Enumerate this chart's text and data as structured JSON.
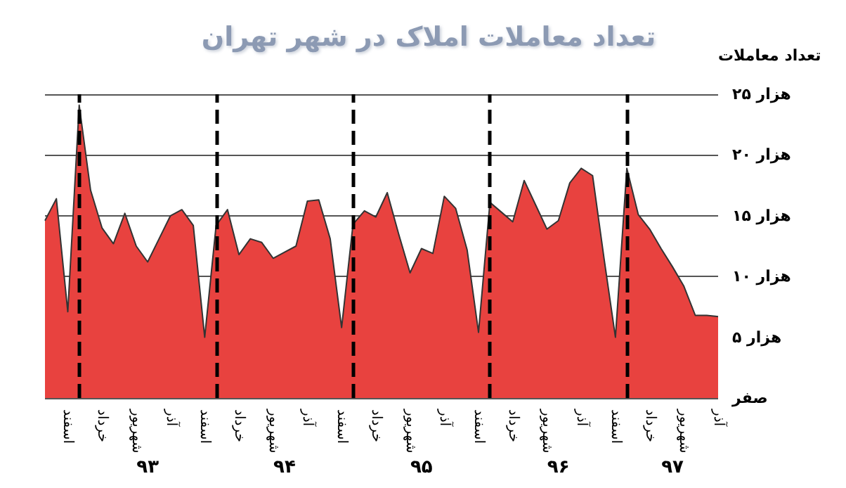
{
  "chart_data": {
    "type": "area",
    "title": "تعداد معاملات املاک در شهر تهران",
    "ylabel": "تعداد معاملات",
    "categories": [
      null,
      null,
      "اسفند",
      null,
      null,
      "خرداد",
      null,
      null,
      "شهریور",
      null,
      null,
      "آذر",
      null,
      null,
      "اسفند",
      null,
      null,
      "خرداد",
      null,
      null,
      "شهریور",
      null,
      null,
      "آذر",
      null,
      null,
      "اسفند",
      null,
      null,
      "خرداد",
      null,
      null,
      "شهریور",
      null,
      null,
      "آذر",
      null,
      null,
      "اسفند",
      null,
      null,
      "خرداد",
      null,
      null,
      "شهریور",
      null,
      null,
      "آذر",
      null,
      null,
      "اسفند",
      null,
      null,
      "خرداد",
      null,
      null,
      "شهریور",
      null,
      null,
      "آذر"
    ],
    "series": [
      {
        "color": "#e8423f",
        "values": [
          14.6,
          16.4,
          7.1,
          24.1,
          17.1,
          14.0,
          12.7,
          15.2,
          12.5,
          11.2,
          13.1,
          15.0,
          15.5,
          14.2,
          5.0,
          14.2,
          15.5,
          11.8,
          13.1,
          12.8,
          11.5,
          12.0,
          12.5,
          16.2,
          16.3,
          13.1,
          5.8,
          14.3,
          15.4,
          14.9,
          16.9,
          13.5,
          10.3,
          12.3,
          11.9,
          16.6,
          15.6,
          12.2,
          5.4,
          16.1,
          15.3,
          14.5,
          17.9,
          15.9,
          13.9,
          14.6,
          17.7,
          18.9,
          18.3,
          11.5,
          5.0,
          18.9,
          15.1,
          13.9,
          12.3,
          10.8,
          9.2,
          6.8,
          6.8,
          6.7
        ]
      }
    ],
    "ylim": [
      0,
      25
    ],
    "yticks": [
      {
        "value": 0,
        "label": "صفر"
      },
      {
        "value": 5,
        "label": "۵ هزار"
      },
      {
        "value": 10,
        "label": "۱۰ هزار"
      },
      {
        "value": 15,
        "label": "۱۵ هزار"
      },
      {
        "value": 20,
        "label": "۲۰ هزار"
      },
      {
        "value": 25,
        "label": "۲۵ هزار"
      }
    ],
    "grid": "y",
    "marker": "none",
    "annotations": [
      "۹۳",
      "۹۴",
      "۹۵",
      "۹۶",
      "۹۷"
    ]
  }
}
